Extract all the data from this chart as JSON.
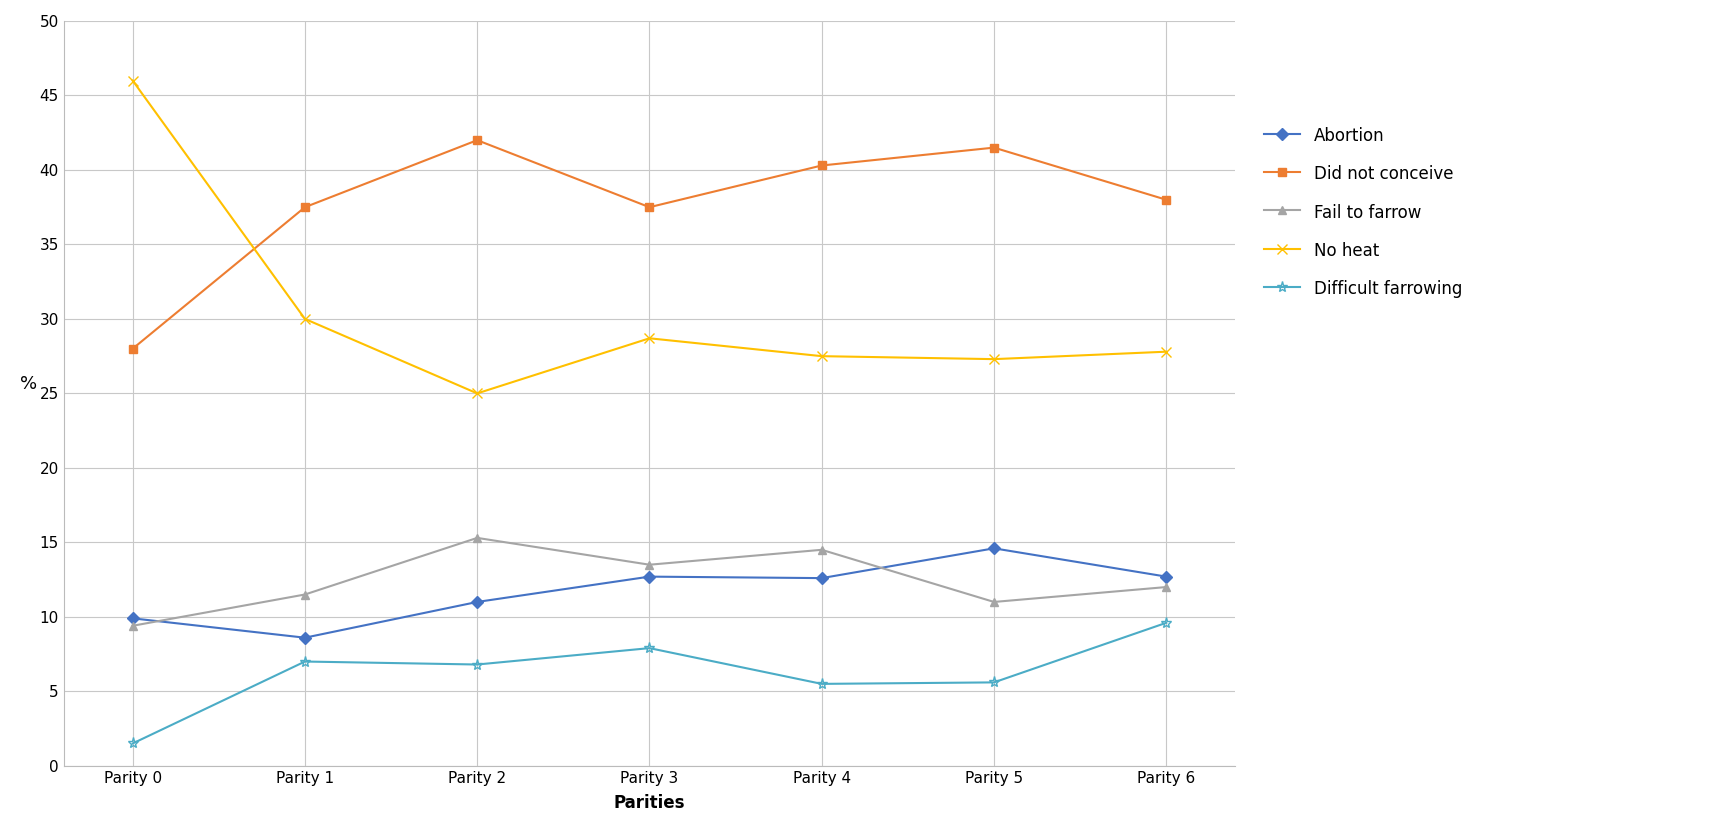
{
  "categories": [
    "Parity 0",
    "Parity 1",
    "Parity 2",
    "Parity 3",
    "Parity 4",
    "Parity 5",
    "Parity 6"
  ],
  "series": {
    "Abortion": {
      "values": [
        9.9,
        8.6,
        11.0,
        12.7,
        12.6,
        14.6,
        12.7
      ],
      "color": "#4472C4",
      "marker": "D",
      "linewidth": 1.5,
      "markersize": 6
    },
    "Did not conceive": {
      "values": [
        28.0,
        37.5,
        42.0,
        37.5,
        40.3,
        41.5,
        38.0
      ],
      "color": "#ED7D31",
      "marker": "s",
      "linewidth": 1.5,
      "markersize": 6
    },
    "Fail to farrow": {
      "values": [
        9.4,
        11.5,
        15.3,
        13.5,
        14.5,
        11.0,
        12.0
      ],
      "color": "#A5A5A5",
      "marker": "^",
      "linewidth": 1.5,
      "markersize": 6
    },
    "No heat": {
      "values": [
        46.0,
        30.0,
        25.0,
        28.7,
        27.5,
        27.3,
        27.8
      ],
      "color": "#FFC000",
      "marker": "x",
      "linewidth": 1.5,
      "markersize": 7
    },
    "Difficult farrowing": {
      "values": [
        1.5,
        7.0,
        6.8,
        7.9,
        5.5,
        5.6,
        9.6
      ],
      "color": "#4BACC6",
      "marker": "*",
      "linewidth": 1.5,
      "markersize": 8
    }
  },
  "ylabel": "%",
  "xlabel": "Parities",
  "ylim": [
    0,
    50
  ],
  "yticks": [
    0,
    5,
    10,
    15,
    20,
    25,
    30,
    35,
    40,
    45,
    50
  ],
  "background_color": "#FFFFFF",
  "grid_color": "#C8C8C8",
  "title": "",
  "legend_order": [
    "Abortion",
    "Did not conceive",
    "Fail to farrow",
    "No heat",
    "Difficult farrowing"
  ]
}
